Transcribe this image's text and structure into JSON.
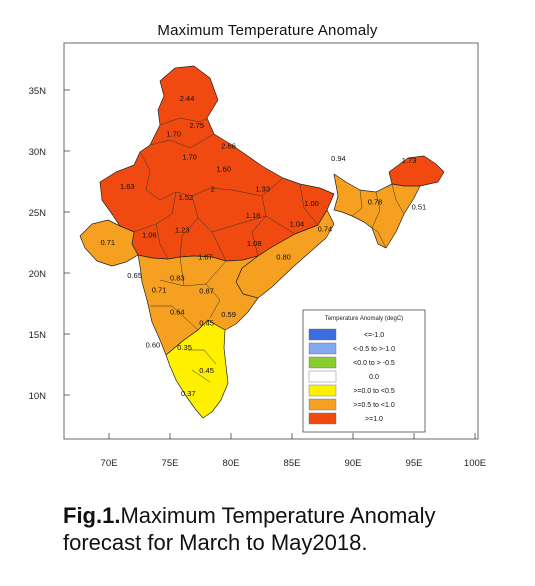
{
  "title": "Maximum Temperature Anomaly",
  "caption": {
    "fig_label": "Fig.1.",
    "text": "Maximum Temperature Anomaly forecast for March to May2018."
  },
  "axes": {
    "x_ticks": [
      "70E",
      "75E",
      "80E",
      "85E",
      "90E",
      "95E",
      "100E"
    ],
    "y_ticks": [
      "35N",
      "30N",
      "25N",
      "20N",
      "15N",
      "10N"
    ]
  },
  "colors": {
    "red": "#f04a10",
    "orange": "#f5a020",
    "yellow": "#fff000",
    "pale_yellow": "#f8f28a",
    "dark_blue": "#3a6ee0",
    "light_blue": "#84a8ee",
    "green": "#88cc30",
    "white": "#ffffff"
  },
  "legend": {
    "title": "Temperature Anomaly (degC)",
    "items": [
      {
        "label": "<=-1.0",
        "color": "#3a6ee0"
      },
      {
        "label": "<-0.5 to >-1.0",
        "color": "#84a8ee"
      },
      {
        "label": "<0.0 to > -0.5",
        "color": "#88cc30"
      },
      {
        "label": "0.0",
        "color": "#ffffff"
      },
      {
        "label": ">=0.0 to <0.5",
        "color": "#fff000"
      },
      {
        "label": ">=0.5 to <1.0",
        "color": "#f5a020"
      },
      {
        "label": ">=1.0",
        "color": "#f04a10"
      }
    ]
  },
  "regions": [
    {
      "value": "2.44",
      "lon": 76.4,
      "lat": 34.1
    },
    {
      "value": "2.75",
      "lon": 77.2,
      "lat": 31.9
    },
    {
      "value": "1.70",
      "lon": 75.3,
      "lat": 31.2
    },
    {
      "value": "2.66",
      "lon": 79.8,
      "lat": 30.2
    },
    {
      "value": "1.70",
      "lon": 76.6,
      "lat": 29.3
    },
    {
      "value": "1.60",
      "lon": 79.4,
      "lat": 28.3
    },
    {
      "value": "1.63",
      "lon": 71.5,
      "lat": 26.9
    },
    {
      "value": "1.52",
      "lon": 76.3,
      "lat": 26.0
    },
    {
      "value": "2",
      "lon": 78.5,
      "lat": 26.7
    },
    {
      "value": "1.33",
      "lon": 82.6,
      "lat": 26.7
    },
    {
      "value": "1.00",
      "lon": 86.6,
      "lat": 25.5
    },
    {
      "value": "1.18",
      "lon": 81.8,
      "lat": 24.5
    },
    {
      "value": "1.04",
      "lon": 85.4,
      "lat": 23.8
    },
    {
      "value": "1.23",
      "lon": 76.0,
      "lat": 23.3
    },
    {
      "value": "1.06",
      "lon": 73.3,
      "lat": 22.9
    },
    {
      "value": "0.74",
      "lon": 87.7,
      "lat": 23.4
    },
    {
      "value": "0.71",
      "lon": 69.9,
      "lat": 22.3
    },
    {
      "value": "1.08",
      "lon": 81.9,
      "lat": 22.2
    },
    {
      "value": "1.07",
      "lon": 77.9,
      "lat": 21.1
    },
    {
      "value": "0.80",
      "lon": 84.3,
      "lat": 21.1
    },
    {
      "value": "0.94",
      "lon": 88.8,
      "lat": 29.2
    },
    {
      "value": "1.73",
      "lon": 94.6,
      "lat": 29.0
    },
    {
      "value": "0.78",
      "lon": 91.8,
      "lat": 25.6
    },
    {
      "value": "0.51",
      "lon": 95.4,
      "lat": 25.2
    },
    {
      "value": "0.65",
      "lon": 72.1,
      "lat": 19.6
    },
    {
      "value": "0.83",
      "lon": 75.6,
      "lat": 19.4
    },
    {
      "value": "0.71",
      "lon": 74.1,
      "lat": 18.4
    },
    {
      "value": "0.87",
      "lon": 78.0,
      "lat": 18.3
    },
    {
      "value": "0.64",
      "lon": 75.6,
      "lat": 16.6
    },
    {
      "value": "0.59",
      "lon": 79.8,
      "lat": 16.4
    },
    {
      "value": "0.45",
      "lon": 78.0,
      "lat": 15.7
    },
    {
      "value": "0.60",
      "lon": 73.6,
      "lat": 13.9
    },
    {
      "value": "0.35",
      "lon": 76.2,
      "lat": 13.7
    },
    {
      "value": "0.45",
      "lon": 78.0,
      "lat": 11.8
    },
    {
      "value": "0.37",
      "lon": 76.5,
      "lat": 9.9
    }
  ]
}
